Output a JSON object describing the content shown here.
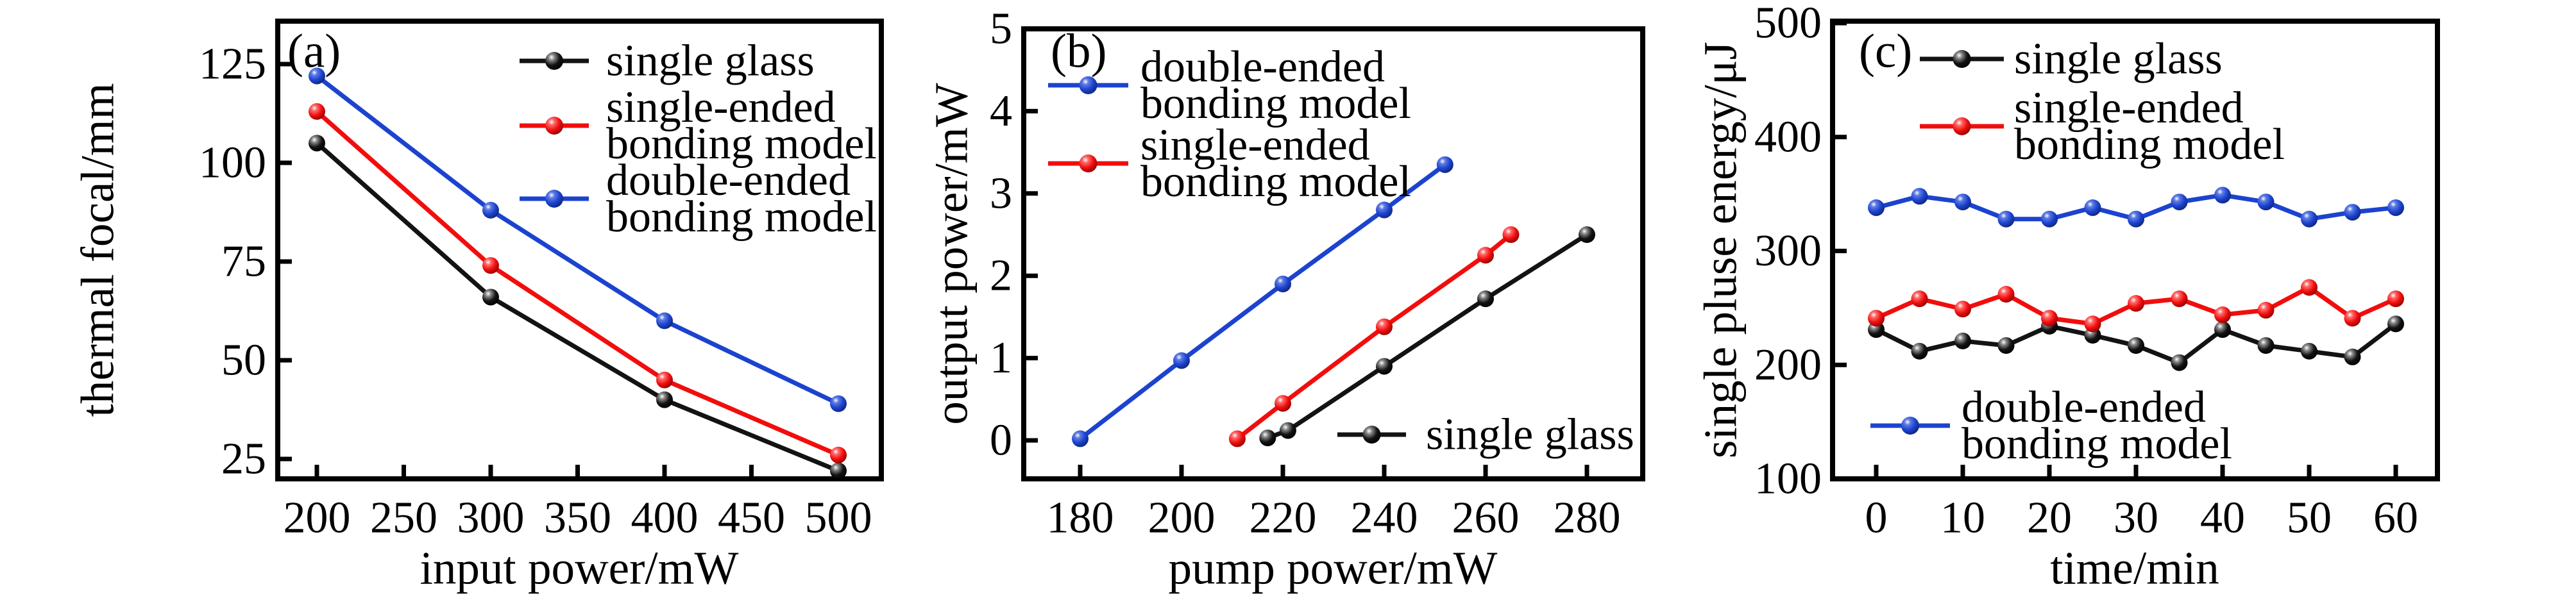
{
  "figure": {
    "background": "#ffffff",
    "panel_letters": [
      "(a)",
      "(b)",
      "(c)"
    ]
  },
  "colors": {
    "black": "#131313",
    "red": "#f20d0d",
    "blue": "#1c43cf"
  },
  "chart_data": [
    {
      "type": "line",
      "panel_letter": "(a)",
      "xlabel": "input power/mW",
      "ylabel": "thermal focal/mm",
      "xticks": [
        200,
        250,
        300,
        350,
        400,
        450,
        500
      ],
      "yticks": [
        25,
        50,
        75,
        100,
        125
      ],
      "xlim": [
        170,
        518
      ],
      "ylim": [
        20,
        136
      ],
      "grid": false,
      "series": [
        {
          "name": "single glass",
          "color": "black",
          "x": [
            200,
            300,
            400,
            500
          ],
          "y": [
            105,
            66,
            40,
            22
          ]
        },
        {
          "name": "single-ended bonding model",
          "color": "red",
          "x": [
            200,
            300,
            400,
            500
          ],
          "y": [
            113,
            74,
            45,
            26
          ]
        },
        {
          "name": "double-ended bonding model",
          "color": "blue",
          "x": [
            200,
            300,
            400,
            500
          ],
          "y": [
            122,
            88,
            60,
            39
          ]
        }
      ],
      "legend": [
        {
          "series": 0,
          "lines": [
            "single glass"
          ]
        },
        {
          "series": 1,
          "lines": [
            "single-ended",
            "bonding model"
          ]
        },
        {
          "series": 2,
          "lines": [
            "double-ended",
            "bonding model"
          ]
        }
      ],
      "legend_position": "upper right inside"
    },
    {
      "type": "line",
      "panel_letter": "(b)",
      "xlabel": "pump power/mW",
      "ylabel": "output power/mW",
      "xticks": [
        180,
        200,
        220,
        240,
        260,
        280
      ],
      "yticks": [
        0,
        1,
        2,
        3,
        4,
        5
      ],
      "xlim": [
        168,
        290
      ],
      "ylim": [
        -0.45,
        5
      ],
      "grid": false,
      "series": [
        {
          "name": "double-ended bonding model",
          "color": "blue",
          "x": [
            180,
            200,
            220,
            240,
            252
          ],
          "y": [
            0.02,
            0.97,
            1.9,
            2.8,
            3.35
          ]
        },
        {
          "name": "single-ended bonding model",
          "color": "red",
          "x": [
            211,
            220,
            240,
            260,
            265
          ],
          "y": [
            0.02,
            0.45,
            1.38,
            2.25,
            2.5
          ]
        },
        {
          "name": "single glass",
          "color": "black",
          "x": [
            217,
            221,
            240,
            260,
            280
          ],
          "y": [
            0.03,
            0.12,
            0.9,
            1.72,
            2.5
          ]
        }
      ],
      "legend": [
        {
          "series": 0,
          "lines": [
            "double-ended",
            "bonding model"
          ]
        },
        {
          "series": 1,
          "lines": [
            "single-ended",
            "bonding model"
          ]
        },
        {
          "series": 2,
          "lines": [
            "single glass"
          ]
        }
      ],
      "legend_position": "upper left inside + lower right inside"
    },
    {
      "type": "line",
      "panel_letter": "(c)",
      "xlabel": "time/min",
      "ylabel": "single pluse energy/μJ",
      "xticks": [
        0,
        10,
        20,
        30,
        40,
        50,
        60
      ],
      "yticks": [
        100,
        200,
        300,
        400,
        500
      ],
      "xlim": [
        -5,
        65
      ],
      "ylim": [
        100,
        502
      ],
      "grid": false,
      "series": [
        {
          "name": "single glass",
          "color": "black",
          "x": [
            0,
            5,
            10,
            15,
            20,
            25,
            30,
            35,
            40,
            45,
            50,
            55,
            60
          ],
          "y": [
            231,
            212,
            221,
            217,
            234,
            226,
            217,
            202,
            231,
            217,
            212,
            207,
            236
          ]
        },
        {
          "name": "single-ended bonding model",
          "color": "red",
          "x": [
            0,
            5,
            10,
            15,
            20,
            25,
            30,
            35,
            40,
            45,
            50,
            55,
            60
          ],
          "y": [
            241,
            258,
            249,
            262,
            241,
            236,
            254,
            258,
            244,
            248,
            268,
            241,
            258
          ]
        },
        {
          "name": "double-ended bonding model",
          "color": "blue",
          "x": [
            0,
            5,
            10,
            15,
            20,
            25,
            30,
            35,
            40,
            45,
            50,
            55,
            60
          ],
          "y": [
            338,
            348,
            343,
            328,
            328,
            338,
            328,
            343,
            349,
            343,
            328,
            334,
            338
          ]
        }
      ],
      "legend": [
        {
          "series": 0,
          "lines": [
            "single glass"
          ]
        },
        {
          "series": 1,
          "lines": [
            "single-ended",
            "bonding model"
          ]
        },
        {
          "series": 2,
          "lines": [
            "double-ended",
            "bonding model"
          ]
        }
      ],
      "legend_position": "upper left inside + lower center inside"
    }
  ]
}
